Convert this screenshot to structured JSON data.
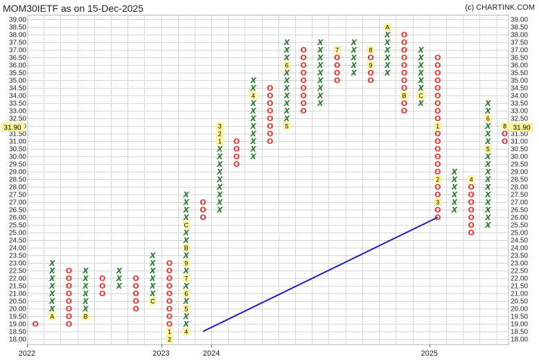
{
  "header": {
    "title": "MOM30IETF as on 15-Dec-2025",
    "credit": "(c) CHARTINK.COM"
  },
  "chart_data": {
    "type": "point-and-figure",
    "box_size": 0.5,
    "ylim": [
      18.0,
      39.0
    ],
    "y_ticks": [
      "18.00",
      "18.50",
      "19.00",
      "19.50",
      "20.00",
      "20.50",
      "21.00",
      "21.50",
      "22.00",
      "22.50",
      "23.00",
      "23.50",
      "24.00",
      "24.50",
      "25.00",
      "25.50",
      "26.00",
      "26.50",
      "27.00",
      "27.50",
      "28.00",
      "28.50",
      "29.00",
      "29.50",
      "30.00",
      "30.50",
      "31.00",
      "31.50",
      "32.00",
      "32.50",
      "33.00",
      "33.50",
      "34.00",
      "34.50",
      "35.00",
      "35.50",
      "36.00",
      "36.50",
      "37.00",
      "37.50",
      "38.00",
      "38.50",
      "39.00"
    ],
    "current_price": "31.90",
    "x_labels": [
      {
        "label": "2022",
        "col": 0
      },
      {
        "label": "2023",
        "col": 8
      },
      {
        "label": "2024",
        "col": 11
      },
      {
        "label": "2025",
        "col": 24
      }
    ],
    "columns": [
      {
        "type": "O",
        "low": 19.0,
        "high": 19.0
      },
      {
        "type": "X",
        "low": 19.5,
        "high": 23.0,
        "months": [
          {
            "price": 19.5,
            "label": "A"
          }
        ]
      },
      {
        "type": "O",
        "low": 19.0,
        "high": 22.5
      },
      {
        "type": "X",
        "low": 19.5,
        "high": 22.5,
        "months": [
          {
            "price": 19.5,
            "label": "B"
          }
        ]
      },
      {
        "type": "O",
        "low": 21.0,
        "high": 22.0
      },
      {
        "type": "X",
        "low": 21.5,
        "high": 22.5
      },
      {
        "type": "O",
        "low": 20.0,
        "high": 22.0
      },
      {
        "type": "X",
        "low": 20.5,
        "high": 23.5,
        "months": [
          {
            "price": 20.5,
            "label": "C"
          }
        ]
      },
      {
        "type": "O",
        "low": 18.0,
        "high": 23.0,
        "months": [
          {
            "price": 18.5,
            "label": "1"
          },
          {
            "price": 18.0,
            "label": "2"
          }
        ]
      },
      {
        "type": "X",
        "low": 18.5,
        "high": 27.5,
        "months": [
          {
            "price": 18.5,
            "label": "4"
          },
          {
            "price": 20.0,
            "label": "5"
          },
          {
            "price": 21.0,
            "label": "6"
          },
          {
            "price": 22.0,
            "label": "7"
          },
          {
            "price": 23.0,
            "label": "9"
          },
          {
            "price": 24.0,
            "label": "B"
          },
          {
            "price": 25.5,
            "label": "C"
          }
        ]
      },
      {
        "type": "O",
        "low": 26.0,
        "high": 27.0
      },
      {
        "type": "X",
        "low": 26.5,
        "high": 32.0,
        "months": [
          {
            "price": 31.0,
            "label": "1"
          },
          {
            "price": 31.5,
            "label": "2"
          },
          {
            "price": 32.0,
            "label": "3"
          }
        ]
      },
      {
        "type": "O",
        "low": 29.5,
        "high": 31.0
      },
      {
        "type": "X",
        "low": 30.0,
        "high": 35.0,
        "months": [
          {
            "price": 34.0,
            "label": "4"
          }
        ]
      },
      {
        "type": "O",
        "low": 31.0,
        "high": 34.5
      },
      {
        "type": "X",
        "low": 32.0,
        "high": 37.5,
        "months": [
          {
            "price": 32.0,
            "label": "5"
          },
          {
            "price": 36.0,
            "label": "6"
          }
        ]
      },
      {
        "type": "O",
        "low": 33.0,
        "high": 37.0
      },
      {
        "type": "X",
        "low": 33.5,
        "high": 37.5
      },
      {
        "type": "O",
        "low": 35.0,
        "high": 37.0,
        "months": [
          {
            "price": 37.0,
            "label": "7"
          }
        ]
      },
      {
        "type": "X",
        "low": 35.5,
        "high": 37.5
      },
      {
        "type": "O",
        "low": 35.0,
        "high": 37.0,
        "months": [
          {
            "price": 37.0,
            "label": "8"
          },
          {
            "price": 36.0,
            "label": "9"
          }
        ]
      },
      {
        "type": "X",
        "low": 35.5,
        "high": 38.5,
        "months": [
          {
            "price": 38.5,
            "label": "A"
          }
        ]
      },
      {
        "type": "O",
        "low": 33.0,
        "high": 38.0,
        "months": [
          {
            "price": 34.0,
            "label": "B"
          }
        ]
      },
      {
        "type": "X",
        "low": 33.5,
        "high": 37.0,
        "months": [
          {
            "price": 34.0,
            "label": "C"
          }
        ]
      },
      {
        "type": "O",
        "low": 26.0,
        "high": 36.5,
        "months": [
          {
            "price": 32.0,
            "label": "1"
          },
          {
            "price": 28.5,
            "label": "2"
          },
          {
            "price": 27.0,
            "label": "3"
          }
        ]
      },
      {
        "type": "X",
        "low": 26.5,
        "high": 29.0
      },
      {
        "type": "O",
        "low": 25.0,
        "high": 28.5,
        "months": [
          {
            "price": 28.5,
            "label": "4"
          }
        ]
      },
      {
        "type": "X",
        "low": 25.5,
        "high": 33.5,
        "months": [
          {
            "price": 30.5,
            "label": "5"
          },
          {
            "price": 32.5,
            "label": "6"
          }
        ]
      },
      {
        "type": "O",
        "low": 31.0,
        "high": 32.0,
        "months": [
          {
            "price": 32.0,
            "label": "8"
          }
        ]
      }
    ],
    "trendline": {
      "from": {
        "col": 10,
        "price": 18.5
      },
      "to": {
        "col": 24,
        "price": 26.0
      },
      "color": "#1a1acc"
    },
    "colors": {
      "x": "#2e7d32",
      "o": "#e53935",
      "month_bg": "#fff59d",
      "grid": "#d6d6d6"
    }
  }
}
